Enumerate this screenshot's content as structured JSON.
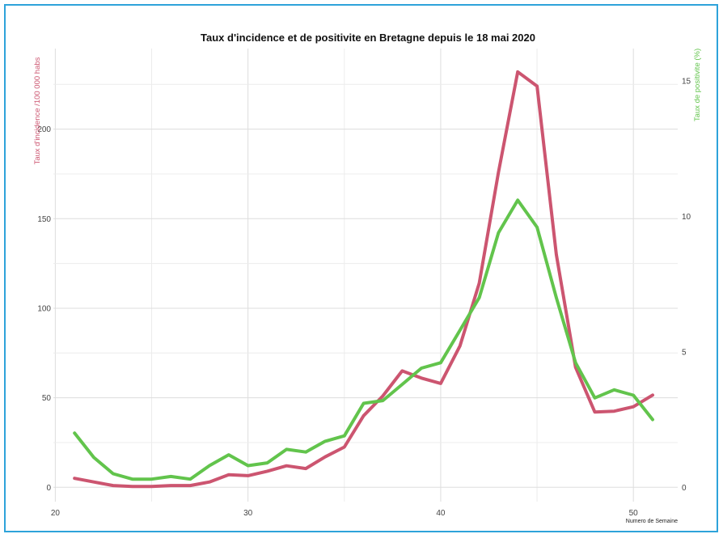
{
  "chart_data": {
    "type": "line",
    "title": "Taux d'incidence et de positivite en Bretagne depuis le 18 mai 2020",
    "xlabel": "Numero de Semaine",
    "ylabel": "Taux d'incidence /100 000 habs",
    "y2label": "Taux de positivite (%)",
    "xlim": [
      19.9,
      52.3
    ],
    "ylim": [
      -8,
      245
    ],
    "y2lim": [
      -0.53,
      16.2
    ],
    "x_ticks": [
      20,
      30,
      40,
      50
    ],
    "y_ticks": [
      0,
      50,
      100,
      150,
      200
    ],
    "y2_ticks": [
      0,
      5,
      10,
      15
    ],
    "grid": true,
    "colors": {
      "incidence": "#cc5570",
      "positivite": "#62c44c",
      "frame": "#2ea3da",
      "grid": "#dddddd"
    },
    "series": [
      {
        "name": "Taux d'incidence /100 000 habs",
        "axis": "left",
        "x": [
          21,
          22,
          23,
          24,
          25,
          26,
          27,
          28,
          29,
          30,
          31,
          32,
          33,
          34,
          35,
          36,
          37,
          38,
          39,
          40,
          41,
          42,
          43,
          44,
          45,
          46,
          47,
          48,
          49,
          50,
          51
        ],
        "values": [
          5,
          3,
          1,
          0.5,
          0.5,
          1,
          1,
          3,
          7,
          6.5,
          9,
          12,
          10.5,
          17,
          22.5,
          40,
          51,
          65,
          61,
          58,
          79,
          114,
          176,
          232,
          224,
          130,
          67,
          42,
          42.5,
          45,
          51.5
        ]
      },
      {
        "name": "Taux de positivite (%)",
        "axis": "right",
        "x": [
          21,
          22,
          23,
          24,
          25,
          26,
          27,
          28,
          29,
          30,
          31,
          32,
          33,
          34,
          35,
          36,
          37,
          38,
          39,
          40,
          41,
          42,
          43,
          44,
          45,
          46,
          47,
          48,
          49,
          50,
          51
        ],
        "values": [
          2.0,
          1.1,
          0.5,
          0.3,
          0.3,
          0.4,
          0.3,
          0.8,
          1.2,
          0.8,
          0.9,
          1.4,
          1.3,
          1.7,
          1.9,
          3.1,
          3.2,
          3.8,
          4.4,
          4.6,
          5.8,
          7.0,
          9.4,
          10.6,
          9.6,
          7.0,
          4.6,
          3.3,
          3.6,
          3.4,
          2.5
        ]
      }
    ]
  }
}
